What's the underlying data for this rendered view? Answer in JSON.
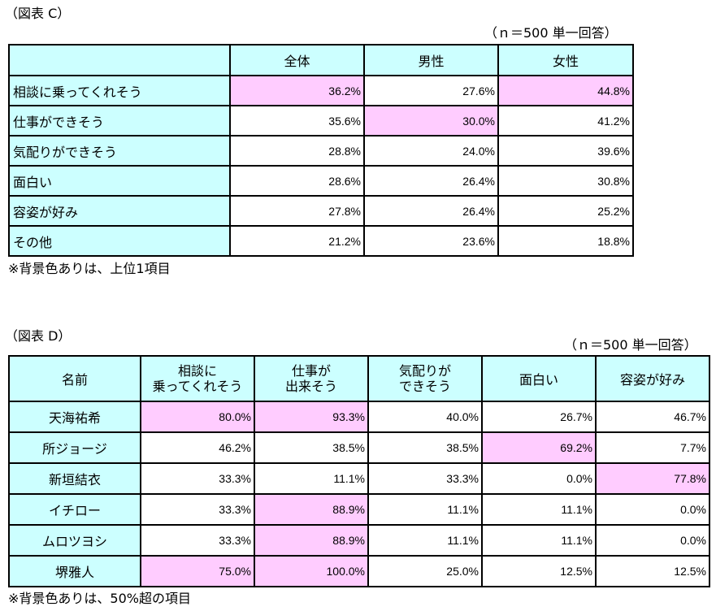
{
  "colors": {
    "header_bg": "#ccffff",
    "highlight_bg": "#ffccff",
    "border": "#000000"
  },
  "tableC": {
    "title": "（図表 C）",
    "note_n": "（ｎ＝500 単一回答）",
    "columns": [
      "全体",
      "男性",
      "女性"
    ],
    "rows": [
      {
        "label": "相談に乗ってくれそう",
        "values": [
          "36.2%",
          "27.6%",
          "44.8%"
        ],
        "highlight": [
          true,
          false,
          true
        ]
      },
      {
        "label": "仕事ができそう",
        "values": [
          "35.6%",
          "30.0%",
          "41.2%"
        ],
        "highlight": [
          false,
          true,
          false
        ]
      },
      {
        "label": "気配りができそう",
        "values": [
          "28.8%",
          "24.0%",
          "39.6%"
        ],
        "highlight": [
          false,
          false,
          false
        ]
      },
      {
        "label": "面白い",
        "values": [
          "28.6%",
          "26.4%",
          "30.8%"
        ],
        "highlight": [
          false,
          false,
          false
        ]
      },
      {
        "label": "容姿が好み",
        "values": [
          "27.8%",
          "26.4%",
          "25.2%"
        ],
        "highlight": [
          false,
          false,
          false
        ]
      },
      {
        "label": "その他",
        "values": [
          "21.2%",
          "23.6%",
          "18.8%"
        ],
        "highlight": [
          false,
          false,
          false
        ]
      }
    ],
    "footnote": "※背景色ありは、上位1項目"
  },
  "tableD": {
    "title": "（図表 D）",
    "note_n": "（ｎ＝500 単一回答）",
    "name_header": "名前",
    "columns": [
      {
        "line1": "相談に",
        "line2": "乗ってくれそう"
      },
      {
        "line1": "仕事が",
        "line2": "出来そう"
      },
      {
        "line1": "気配りが",
        "line2": "できそう"
      },
      {
        "line1": "面白い",
        "line2": ""
      },
      {
        "line1": "容姿が好み",
        "line2": ""
      }
    ],
    "rows": [
      {
        "label": "天海祐希",
        "values": [
          "80.0%",
          "93.3%",
          "40.0%",
          "26.7%",
          "46.7%"
        ],
        "highlight": [
          true,
          true,
          false,
          false,
          false
        ]
      },
      {
        "label": "所ジョージ",
        "values": [
          "46.2%",
          "38.5%",
          "38.5%",
          "69.2%",
          "7.7%"
        ],
        "highlight": [
          false,
          false,
          false,
          true,
          false
        ]
      },
      {
        "label": "新垣結衣",
        "values": [
          "33.3%",
          "11.1%",
          "33.3%",
          "0.0%",
          "77.8%"
        ],
        "highlight": [
          false,
          false,
          false,
          false,
          true
        ]
      },
      {
        "label": "イチロー",
        "values": [
          "33.3%",
          "88.9%",
          "11.1%",
          "11.1%",
          "0.0%"
        ],
        "highlight": [
          false,
          true,
          false,
          false,
          false
        ]
      },
      {
        "label": "ムロツヨシ",
        "values": [
          "33.3%",
          "88.9%",
          "11.1%",
          "11.1%",
          "0.0%"
        ],
        "highlight": [
          false,
          true,
          false,
          false,
          false
        ]
      },
      {
        "label": "堺雅人",
        "values": [
          "75.0%",
          "100.0%",
          "25.0%",
          "12.5%",
          "12.5%"
        ],
        "highlight": [
          true,
          true,
          false,
          false,
          false
        ]
      }
    ],
    "footnote": "※背景色ありは、50%超の項目"
  }
}
